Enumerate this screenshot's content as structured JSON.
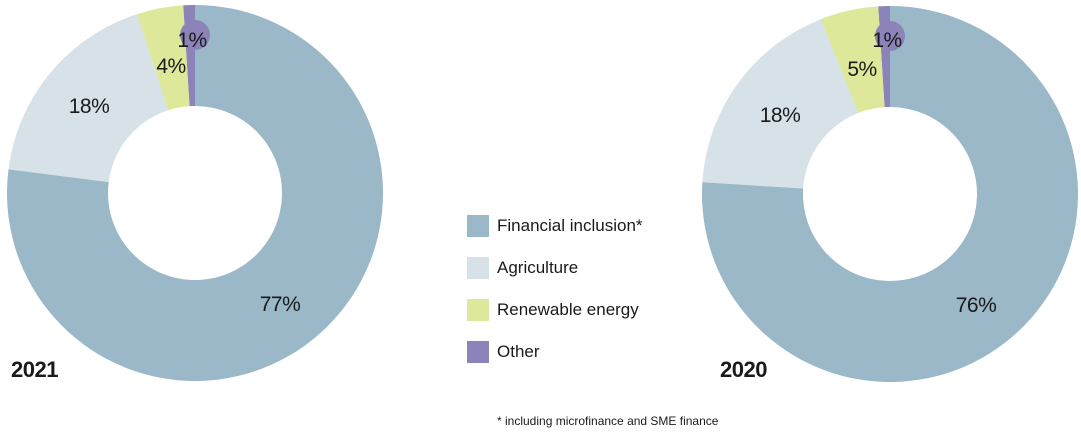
{
  "colors": {
    "financial_inclusion": "#9ab8c8",
    "agriculture": "#d6e1e8",
    "renewable_energy": "#dde89a",
    "other": "#8c84b8"
  },
  "legend": {
    "items": [
      {
        "key": "financial_inclusion",
        "label": "Financial inclusion*"
      },
      {
        "key": "agriculture",
        "label": "Agriculture"
      },
      {
        "key": "renewable_energy",
        "label": "Renewable energy"
      },
      {
        "key": "other",
        "label": "Other"
      }
    ]
  },
  "footnote": "* including microfinance and SME finance",
  "chart_data": [
    {
      "type": "pie",
      "variant": "donut",
      "title": "2021",
      "categories": [
        "Financial inclusion*",
        "Agriculture",
        "Renewable energy",
        "Other"
      ],
      "values": [
        77,
        18,
        4,
        1
      ],
      "labels": [
        "77%",
        "18%",
        "4%",
        "1%"
      ]
    },
    {
      "type": "pie",
      "variant": "donut",
      "title": "2020",
      "categories": [
        "Financial inclusion*",
        "Agriculture",
        "Renewable energy",
        "Other"
      ],
      "values": [
        76,
        18,
        5,
        1
      ],
      "labels": [
        "76%",
        "18%",
        "5%",
        "1%"
      ]
    }
  ]
}
